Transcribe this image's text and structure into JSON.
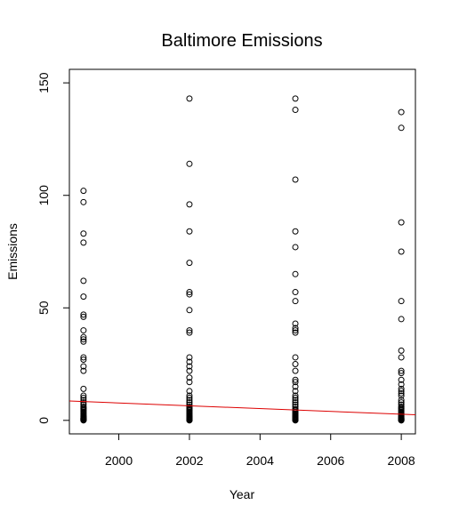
{
  "chart_data": {
    "type": "scatter",
    "title": "Baltimore Emissions",
    "xlabel": "Year",
    "ylabel": "Emissions",
    "xlim": [
      1998.6,
      2008.4
    ],
    "ylim": [
      -6,
      156
    ],
    "x_ticks": [
      2000,
      2002,
      2004,
      2006,
      2008
    ],
    "y_ticks": [
      0,
      50,
      100,
      150
    ],
    "grid": false,
    "point_color": "#000000",
    "trend_color": "#dd0000",
    "series": [
      {
        "x": [
          1999,
          1999,
          1999,
          1999,
          1999,
          1999,
          1999,
          1999,
          1999,
          1999,
          1999,
          1999,
          1999,
          1999,
          1999,
          1999,
          1999,
          1999,
          1999,
          1999,
          1999,
          1999,
          1999,
          1999,
          1999,
          1999,
          1999,
          1999,
          1999,
          1999,
          1999,
          1999,
          1999,
          1999,
          1999,
          1999,
          1999,
          1999,
          1999,
          1999,
          1999,
          2002,
          2002,
          2002,
          2002,
          2002,
          2002,
          2002,
          2002,
          2002,
          2002,
          2002,
          2002,
          2002,
          2002,
          2002,
          2002,
          2002,
          2002,
          2002,
          2002,
          2002,
          2002,
          2002,
          2002,
          2002,
          2002,
          2002,
          2002,
          2002,
          2002,
          2002,
          2002,
          2002,
          2002,
          2002,
          2002,
          2002,
          2002,
          2002,
          2002,
          2002,
          2005,
          2005,
          2005,
          2005,
          2005,
          2005,
          2005,
          2005,
          2005,
          2005,
          2005,
          2005,
          2005,
          2005,
          2005,
          2005,
          2005,
          2005,
          2005,
          2005,
          2005,
          2005,
          2005,
          2005,
          2005,
          2005,
          2005,
          2005,
          2005,
          2005,
          2005,
          2005,
          2005,
          2005,
          2005,
          2005,
          2005,
          2005,
          2005,
          2005,
          2005,
          2008,
          2008,
          2008,
          2008,
          2008,
          2008,
          2008,
          2008,
          2008,
          2008,
          2008,
          2008,
          2008,
          2008,
          2008,
          2008,
          2008,
          2008,
          2008,
          2008,
          2008,
          2008,
          2008,
          2008,
          2008,
          2008,
          2008,
          2008,
          2008,
          2008,
          2008,
          2008,
          2008,
          2008,
          2008,
          2008,
          2008,
          2008,
          2008
        ],
        "y": [
          102,
          97,
          83,
          79,
          62,
          55,
          47,
          46,
          40,
          37,
          36,
          35,
          28,
          27,
          24,
          22,
          14,
          11,
          10,
          9,
          8,
          7,
          6,
          5.5,
          5,
          4.5,
          4,
          3.5,
          3,
          2.5,
          2,
          1.7,
          1.4,
          1.1,
          0.9,
          0.7,
          0.5,
          0.3,
          0.2,
          0.1,
          0,
          143,
          114,
          96,
          84,
          70,
          57,
          56,
          49,
          40,
          39,
          28,
          26,
          24,
          22,
          19,
          17,
          13,
          11,
          10,
          9,
          8,
          7,
          6,
          5.5,
          5,
          4.5,
          4,
          3.5,
          3,
          2.5,
          2,
          1.7,
          1.4,
          1.1,
          0.9,
          0.7,
          0.5,
          0.3,
          0.2,
          0.1,
          0,
          143,
          138,
          107,
          84,
          77,
          65,
          57,
          53,
          43,
          41,
          40,
          39,
          28,
          25,
          22,
          18,
          17,
          15,
          13,
          11,
          10,
          9,
          8,
          7,
          6,
          5,
          4.5,
          4,
          3.5,
          3,
          2.5,
          2,
          1.7,
          1.4,
          1.1,
          0.9,
          0.7,
          0.5,
          0.3,
          0.1,
          0,
          137,
          130,
          88,
          75,
          53,
          45,
          31,
          28,
          22,
          21,
          18,
          16,
          14,
          13,
          12,
          11,
          9,
          8,
          7,
          6,
          5.5,
          5,
          4.5,
          4,
          3.5,
          3,
          2.5,
          2,
          1.7,
          1.4,
          1.1,
          0.9,
          0.7,
          0.5,
          0.3,
          0.2,
          0.1,
          0.05,
          0
        ]
      }
    ],
    "trend_line": {
      "x": [
        1998.6,
        2008.4
      ],
      "y": [
        8.6,
        2.5
      ]
    }
  }
}
